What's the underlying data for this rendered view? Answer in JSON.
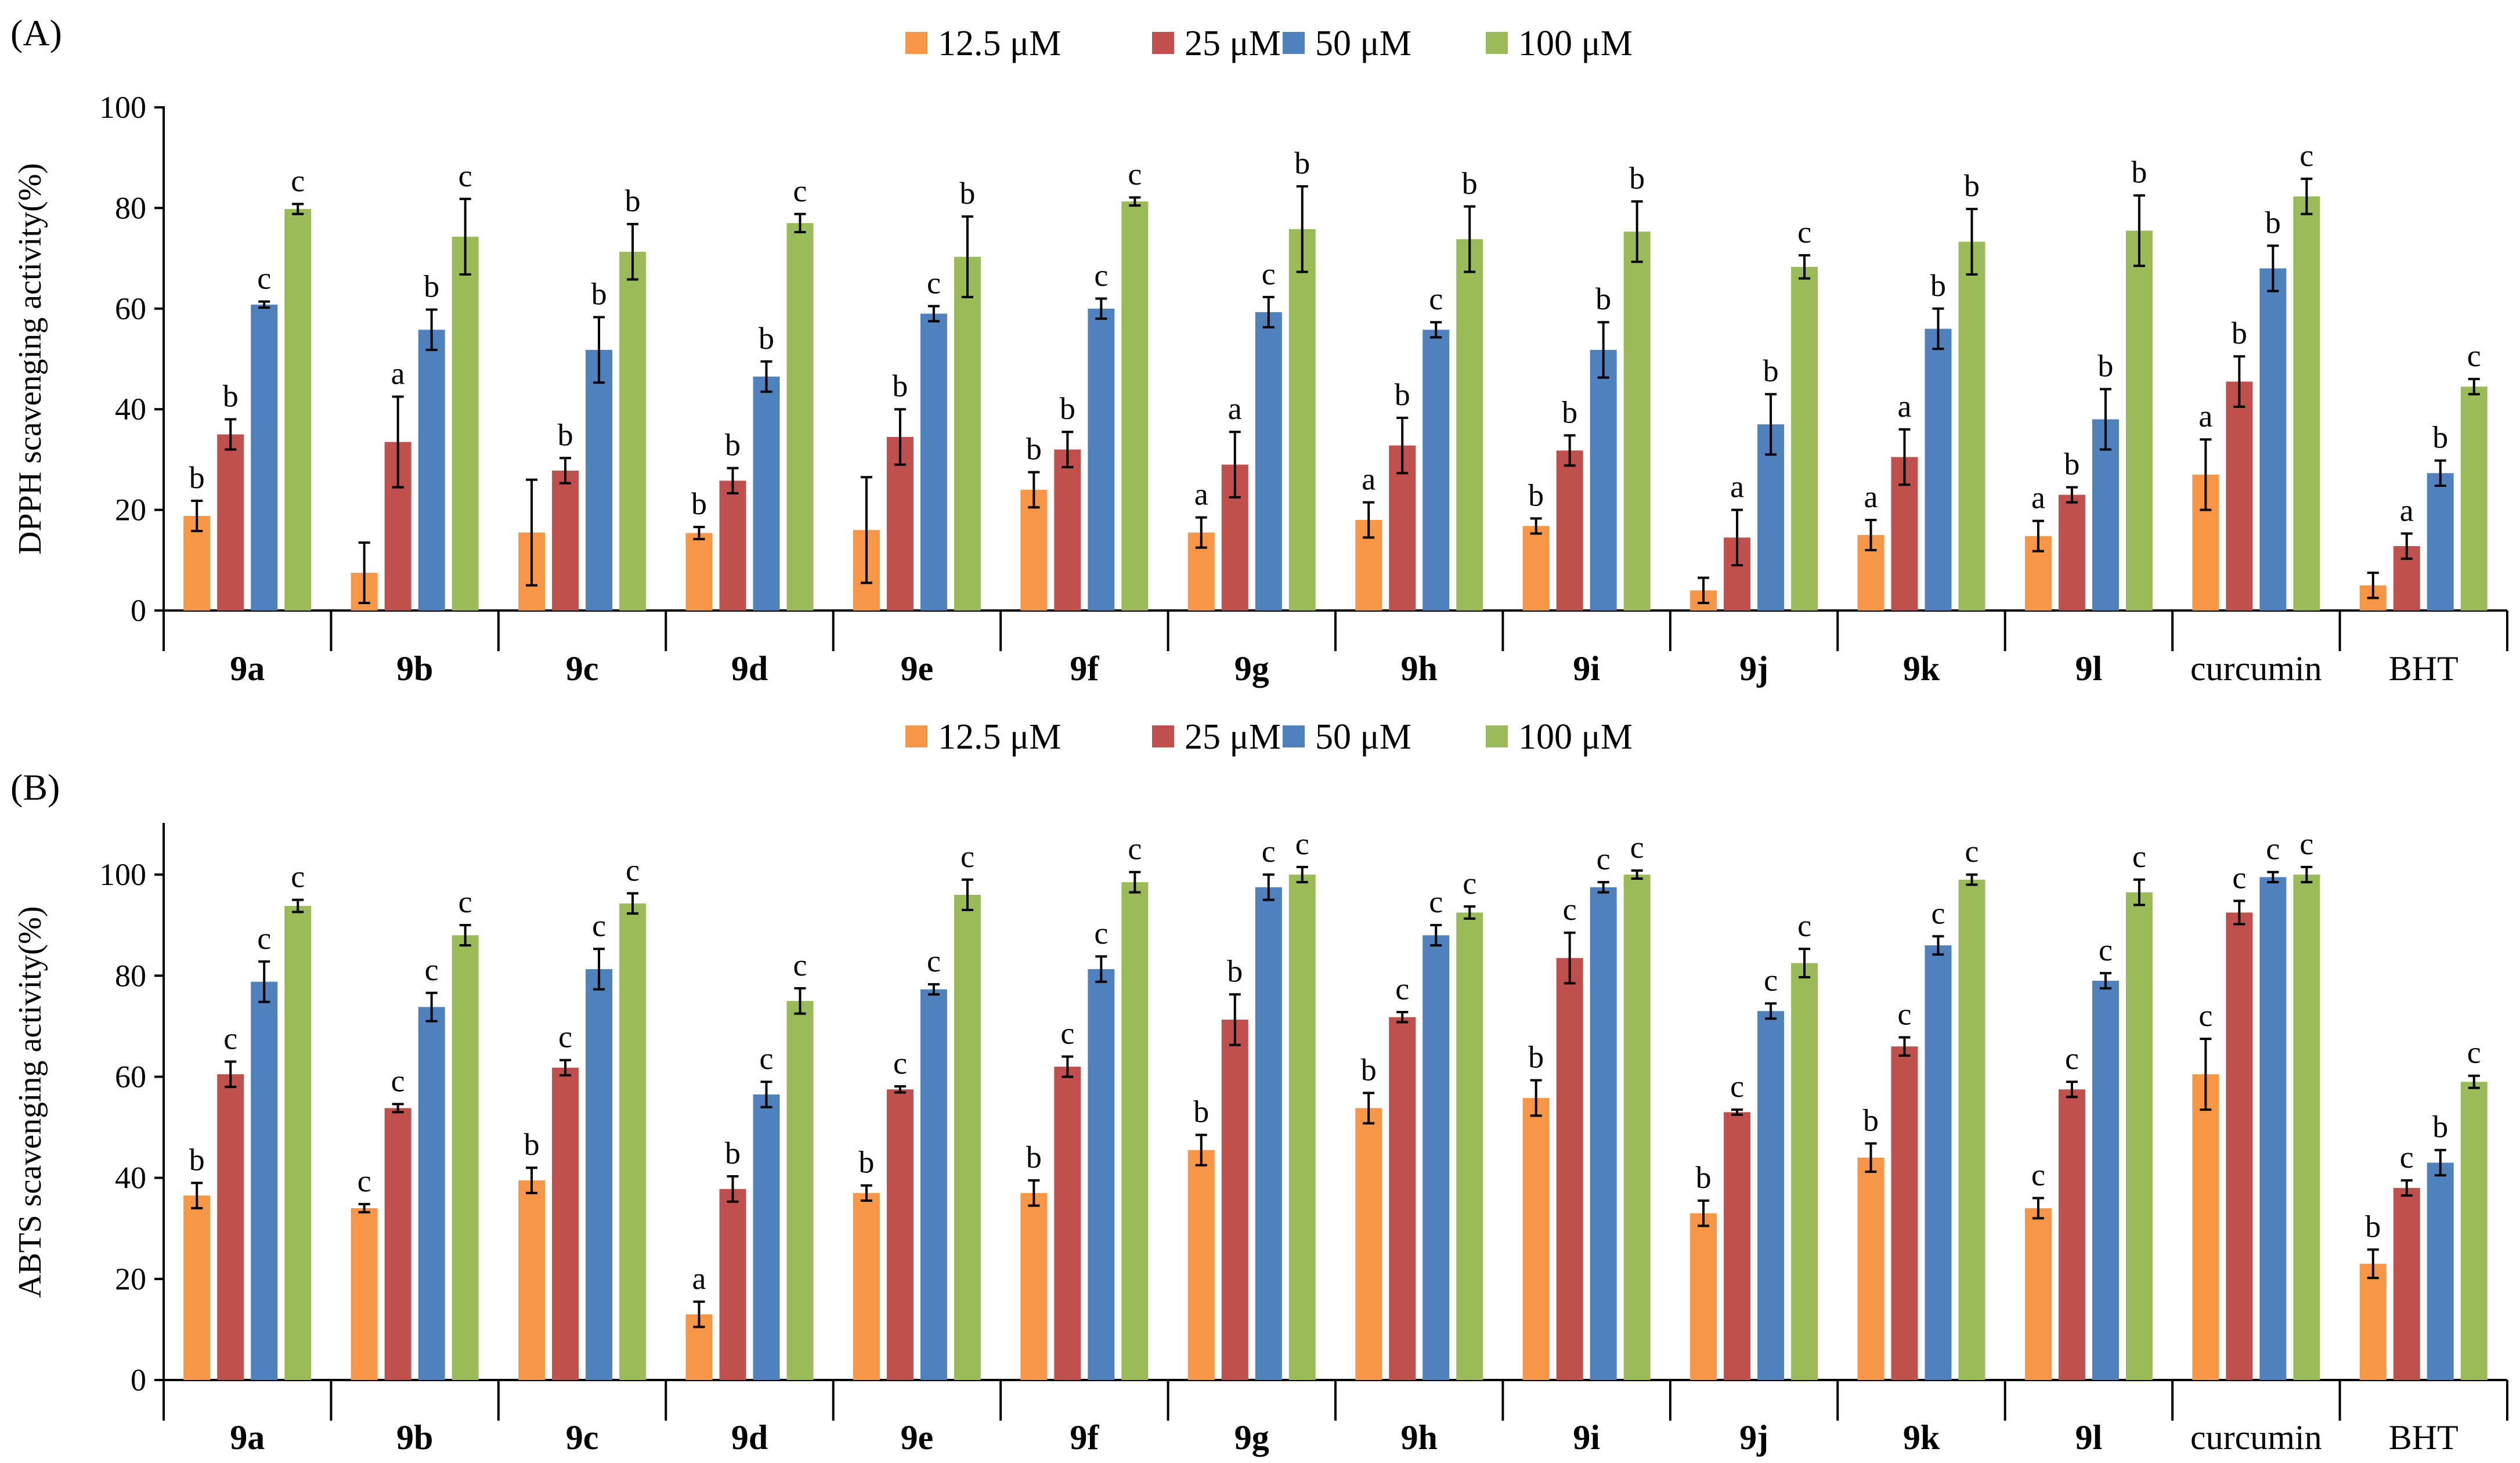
{
  "colors": {
    "12.5": "#F79646",
    "25": "#C0504D",
    "50": "#4F81BD",
    "100": "#9BBB59"
  },
  "chart_data": [
    {
      "type": "bar",
      "panel": "(A)",
      "ylabel": "DPPH scavenging activity(%)",
      "ylim": [
        0,
        100
      ],
      "yticks": [
        0,
        20,
        40,
        60,
        80,
        100
      ],
      "legend": "top",
      "categories": [
        "9a",
        "9b",
        "9c",
        "9d",
        "9e",
        "9f",
        "9g",
        "9h",
        "9i",
        "9j",
        "9k",
        "9l",
        "curcumin",
        "BHT"
      ],
      "category_bold": [
        true,
        true,
        true,
        true,
        true,
        true,
        true,
        true,
        true,
        true,
        true,
        true,
        false,
        false
      ],
      "series": [
        {
          "name": "12.5 μM",
          "color_key": "12.5",
          "values": [
            18.8,
            7.5,
            15.5,
            15.4,
            16.0,
            24.0,
            15.5,
            18.0,
            16.8,
            4.0,
            15.0,
            14.8,
            27.0,
            5.0
          ],
          "errors": [
            3.0,
            6.0,
            10.5,
            1.2,
            10.5,
            3.5,
            3.0,
            3.5,
            1.5,
            2.5,
            3.0,
            3.0,
            7.0,
            2.5
          ],
          "labels": [
            "b",
            "",
            "",
            "b",
            "",
            "b",
            "a",
            "a",
            "b",
            "",
            "a",
            "a",
            "a",
            ""
          ]
        },
        {
          "name": "25 μM",
          "color_key": "25",
          "values": [
            35.0,
            33.5,
            27.8,
            25.8,
            34.5,
            32.0,
            29.0,
            32.8,
            31.8,
            14.5,
            30.5,
            23.0,
            45.5,
            12.8
          ],
          "errors": [
            3.0,
            9.0,
            2.5,
            2.5,
            5.5,
            3.5,
            6.5,
            5.5,
            3.0,
            5.5,
            5.5,
            1.5,
            5.0,
            2.5
          ],
          "labels": [
            "b",
            "a",
            "b",
            "b",
            "b",
            "b",
            "a",
            "b",
            "b",
            "a",
            "a",
            "b",
            "b",
            "a"
          ]
        },
        {
          "name": "50 μM",
          "color_key": "50",
          "values": [
            60.8,
            55.8,
            51.8,
            46.5,
            59.0,
            60.0,
            59.3,
            55.8,
            51.8,
            37.0,
            56.0,
            38.0,
            68.0,
            27.3
          ],
          "errors": [
            0.6,
            4.0,
            6.5,
            3.0,
            1.5,
            2.0,
            3.0,
            1.5,
            5.5,
            6.0,
            4.0,
            6.0,
            4.5,
            2.5
          ],
          "labels": [
            "c",
            "b",
            "b",
            "b",
            "c",
            "c",
            "c",
            "c",
            "b",
            "b",
            "b",
            "b",
            "b",
            "b"
          ]
        },
        {
          "name": "100 μM",
          "color_key": "100",
          "values": [
            79.8,
            74.3,
            71.3,
            77.0,
            70.3,
            81.3,
            75.8,
            73.8,
            75.3,
            68.3,
            73.3,
            75.5,
            82.3,
            44.5
          ],
          "errors": [
            1.0,
            7.5,
            5.5,
            1.8,
            8.0,
            0.8,
            8.5,
            6.5,
            6.0,
            2.3,
            6.5,
            7.0,
            3.5,
            1.5
          ],
          "labels": [
            "c",
            "c",
            "b",
            "c",
            "b",
            "c",
            "b",
            "b",
            "b",
            "c",
            "b",
            "b",
            "c",
            "c"
          ]
        }
      ]
    },
    {
      "type": "bar",
      "panel": "(B)",
      "ylabel": "ABTS scavenging activity(%)",
      "ylim": [
        0,
        110
      ],
      "yticks": [
        0,
        20,
        40,
        60,
        80,
        100
      ],
      "legend": "top",
      "categories": [
        "9a",
        "9b",
        "9c",
        "9d",
        "9e",
        "9f",
        "9g",
        "9h",
        "9i",
        "9j",
        "9k",
        "9l",
        "curcumin",
        "BHT"
      ],
      "category_bold": [
        true,
        true,
        true,
        true,
        true,
        true,
        true,
        true,
        true,
        true,
        true,
        true,
        false,
        false
      ],
      "series": [
        {
          "name": "12.5 μM",
          "color_key": "12.5",
          "values": [
            36.5,
            34.0,
            39.5,
            13.0,
            37.0,
            37.0,
            45.5,
            53.8,
            55.8,
            33.0,
            44.0,
            34.0,
            60.5,
            23.0
          ],
          "errors": [
            2.5,
            0.8,
            2.5,
            2.5,
            1.5,
            2.5,
            3.0,
            3.0,
            3.5,
            2.5,
            2.8,
            2.0,
            7.0,
            2.8
          ],
          "labels": [
            "b",
            "c",
            "b",
            "a",
            "b",
            "b",
            "b",
            "b",
            "b",
            "b",
            "b",
            "c",
            "c",
            "b"
          ]
        },
        {
          "name": "25 μM",
          "color_key": "25",
          "values": [
            60.5,
            53.8,
            61.8,
            37.8,
            57.5,
            62.0,
            71.3,
            71.8,
            83.5,
            53.0,
            66.0,
            57.5,
            92.5,
            38.0
          ],
          "errors": [
            2.5,
            0.8,
            1.5,
            2.5,
            0.6,
            2.0,
            5.0,
            1.0,
            5.0,
            0.5,
            1.8,
            1.5,
            2.3,
            1.5
          ],
          "labels": [
            "c",
            "c",
            "c",
            "b",
            "c",
            "c",
            "b",
            "c",
            "c",
            "c",
            "c",
            "c",
            "c",
            "c"
          ]
        },
        {
          "name": "50 μM",
          "color_key": "50",
          "values": [
            78.8,
            73.8,
            81.3,
            56.5,
            77.3,
            81.3,
            97.5,
            88.0,
            97.5,
            73.0,
            86.0,
            79.0,
            99.5,
            43.0
          ],
          "errors": [
            4.0,
            2.8,
            4.0,
            2.5,
            1.0,
            2.5,
            2.5,
            2.0,
            1.0,
            1.5,
            1.8,
            1.5,
            1.0,
            2.5
          ],
          "labels": [
            "c",
            "c",
            "c",
            "c",
            "c",
            "c",
            "c",
            "c",
            "c",
            "c",
            "c",
            "c",
            "c",
            "b"
          ]
        },
        {
          "name": "100 μM",
          "color_key": "100",
          "values": [
            93.8,
            88.0,
            94.3,
            75.0,
            96.0,
            98.5,
            100.0,
            92.5,
            100.0,
            82.5,
            99.0,
            96.5,
            100.0,
            59.0
          ],
          "errors": [
            1.2,
            2.0,
            2.0,
            2.5,
            3.0,
            2.0,
            1.5,
            1.2,
            0.8,
            2.8,
            1.0,
            2.5,
            1.5,
            1.2
          ],
          "labels": [
            "c",
            "c",
            "c",
            "c",
            "c",
            "c",
            "c",
            "c",
            "c",
            "c",
            "c",
            "c",
            "c",
            "c"
          ]
        }
      ]
    }
  ]
}
